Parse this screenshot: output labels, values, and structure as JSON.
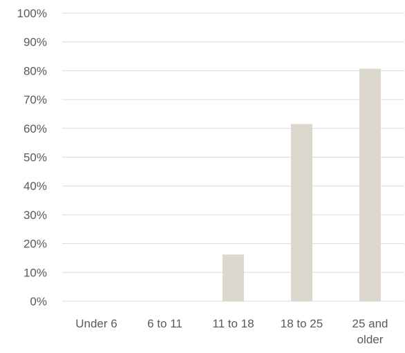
{
  "chart_data": {
    "type": "bar",
    "categories": [
      "Under 6",
      "6 to 11",
      "11 to 18",
      "18 to 25",
      "25 and older"
    ],
    "category_label_lines": [
      [
        "Under 6"
      ],
      [
        "6 to 11"
      ],
      [
        "11 to 18"
      ],
      [
        "18 to 25"
      ],
      [
        "25 and",
        "older"
      ]
    ],
    "values": [
      0,
      0,
      16.2,
      61.5,
      80.7
    ],
    "ylim": [
      0,
      100
    ],
    "y_ticks": [
      0,
      10,
      20,
      30,
      40,
      50,
      60,
      70,
      80,
      90,
      100
    ],
    "y_tick_labels": [
      "0%",
      "10%",
      "20%",
      "30%",
      "40%",
      "50%",
      "60%",
      "70%",
      "80%",
      "90%",
      "100%"
    ],
    "grid": true,
    "legend": "none",
    "title": "",
    "xlabel": "",
    "ylabel": "",
    "colors": {
      "bar": "#dcd8ce",
      "grid": "#d9d9d9",
      "text": "#595959",
      "background": "#ffffff"
    }
  }
}
